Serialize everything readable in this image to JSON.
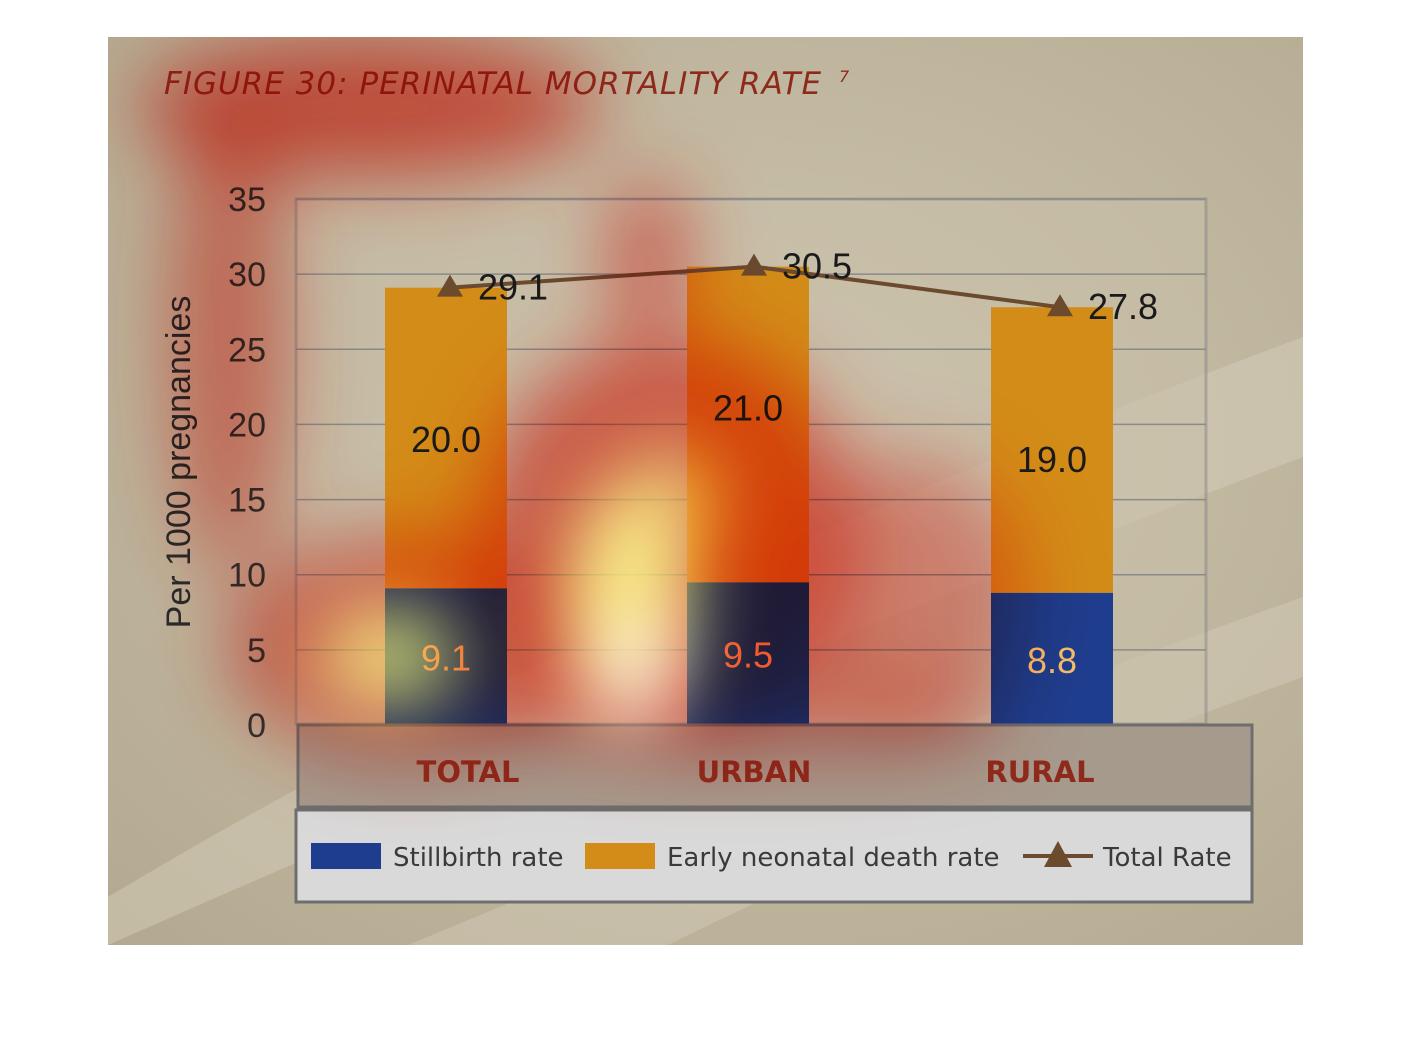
{
  "figure": {
    "title": "FIGURE 30: PERINATAL MORTALITY RATE",
    "title_superscript": "7"
  },
  "colors": {
    "background": "#c3b9a2",
    "stillbirth": "#1f3d8f",
    "neonatal": "#d38c17",
    "total_line": "#6b4a2e",
    "title": "#8e2a1c",
    "category_band": "#a69a8d",
    "category_text": "#8e2a1c",
    "legend_box": "#d9d9d9"
  },
  "chart_data": {
    "type": "bar",
    "stacked": true,
    "title": "FIGURE 30: PERINATAL MORTALITY RATE",
    "xlabel": "",
    "ylabel": "Per 1000 pregnancies",
    "ylim": [
      0,
      35
    ],
    "yticks": [
      0,
      5,
      10,
      15,
      20,
      25,
      30,
      35
    ],
    "grid": true,
    "legend_position": "bottom",
    "categories": [
      "TOTAL",
      "URBAN",
      "RURAL"
    ],
    "series": [
      {
        "name": "Stillbirth rate",
        "values": [
          9.1,
          9.5,
          8.8
        ],
        "labels": [
          "9.1",
          "9.5",
          "8.8"
        ]
      },
      {
        "name": "Early neonatal death rate",
        "values": [
          20.0,
          21.0,
          19.0
        ],
        "labels": [
          "20.0",
          "21.0",
          "19.0"
        ]
      }
    ],
    "line": {
      "name": "Total Rate",
      "values": [
        29.1,
        30.5,
        27.8
      ],
      "labels": [
        "29.1",
        "30.5",
        "27.8"
      ]
    }
  }
}
